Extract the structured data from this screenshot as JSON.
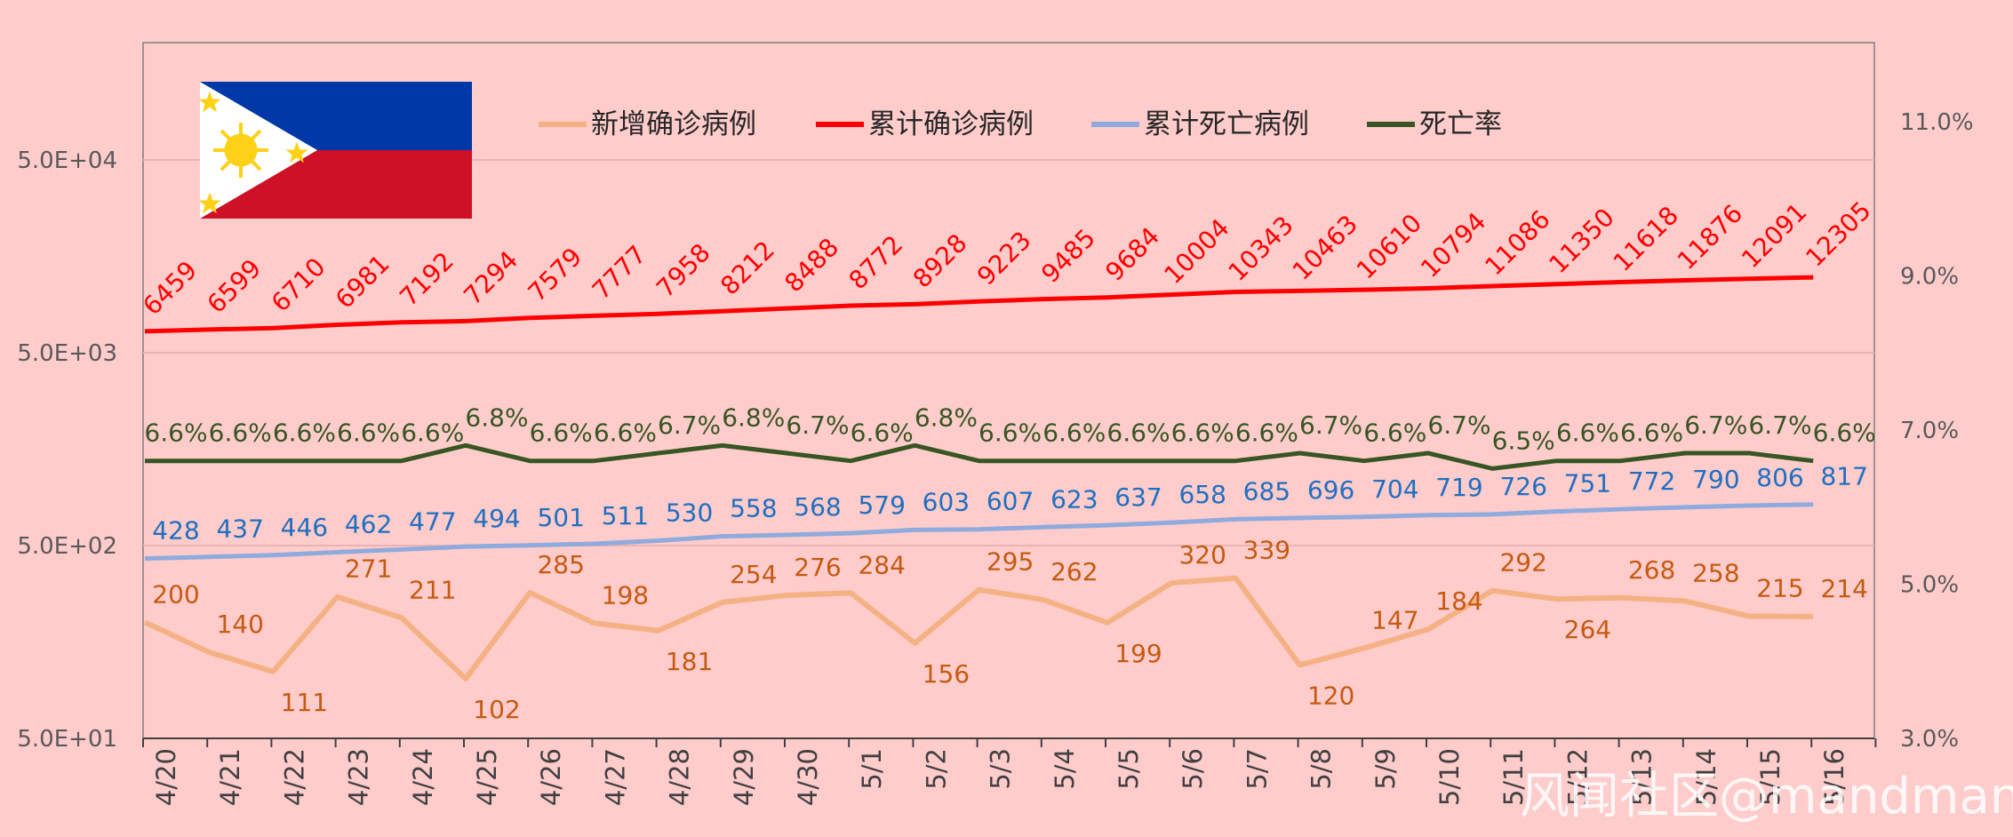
{
  "chart_data": {
    "type": "line",
    "categories": [
      "4/20",
      "4/21",
      "4/22",
      "4/23",
      "4/24",
      "4/25",
      "4/26",
      "4/27",
      "4/28",
      "4/29",
      "4/30",
      "5/1",
      "5/2",
      "5/3",
      "5/4",
      "5/5",
      "5/6",
      "5/7",
      "5/8",
      "5/9",
      "5/10",
      "5/11",
      "5/12",
      "5/13",
      "5/14",
      "5/15",
      "5/16"
    ],
    "series": [
      {
        "name": "新增确诊病例",
        "axis": "left-log",
        "color": "#f4b183",
        "label_color": "#c55a11",
        "values": [
          200,
          140,
          111,
          271,
          211,
          102,
          285,
          198,
          181,
          254,
          276,
          284,
          156,
          295,
          262,
          199,
          320,
          339,
          120,
          147,
          184,
          292,
          264,
          268,
          258,
          215,
          214
        ]
      },
      {
        "name": "累计确诊病例",
        "axis": "left-log",
        "color": "#ff0000",
        "label_color": "#ff0000",
        "values": [
          6459,
          6599,
          6710,
          6981,
          7192,
          7294,
          7579,
          7777,
          7958,
          8212,
          8488,
          8772,
          8928,
          9223,
          9485,
          9684,
          10004,
          10343,
          10463,
          10610,
          10794,
          11086,
          11350,
          11618,
          11876,
          12091,
          12305
        ]
      },
      {
        "name": "累计死亡病例",
        "axis": "left-log",
        "color": "#8faadc",
        "label_color": "#1f6fc0",
        "values": [
          428,
          437,
          446,
          462,
          477,
          494,
          501,
          511,
          530,
          558,
          568,
          579,
          603,
          607,
          623,
          637,
          658,
          685,
          696,
          704,
          719,
          726,
          751,
          772,
          790,
          806,
          817
        ]
      },
      {
        "name": "死亡率",
        "axis": "right",
        "color": "#375623",
        "label_color": "#375623",
        "values": [
          "6.6%",
          "6.6%",
          "6.6%",
          "6.6%",
          "6.6%",
          "6.8%",
          "6.6%",
          "6.6%",
          "6.7%",
          "6.8%",
          "6.7%",
          "6.6%",
          "6.8%",
          "6.6%",
          "6.6%",
          "6.6%",
          "6.6%",
          "6.6%",
          "6.7%",
          "6.6%",
          "6.7%",
          "6.5%",
          "6.6%",
          "6.6%",
          "6.7%",
          "6.7%",
          "6.6%"
        ]
      }
    ],
    "yaxis_left": {
      "scale": "log",
      "ticks": [
        "5.0E+01",
        "5.0E+02",
        "5.0E+03",
        "5.0E+04"
      ],
      "range": [
        50,
        100000
      ]
    },
    "yaxis_right": {
      "ticks": [
        "3.0%",
        "5.0%",
        "7.0%",
        "9.0%",
        "11.0%"
      ],
      "range": [
        3,
        12
      ]
    },
    "legend_position": "top",
    "flag": "philippines-flag"
  },
  "watermark": "风闻社区@mandman"
}
